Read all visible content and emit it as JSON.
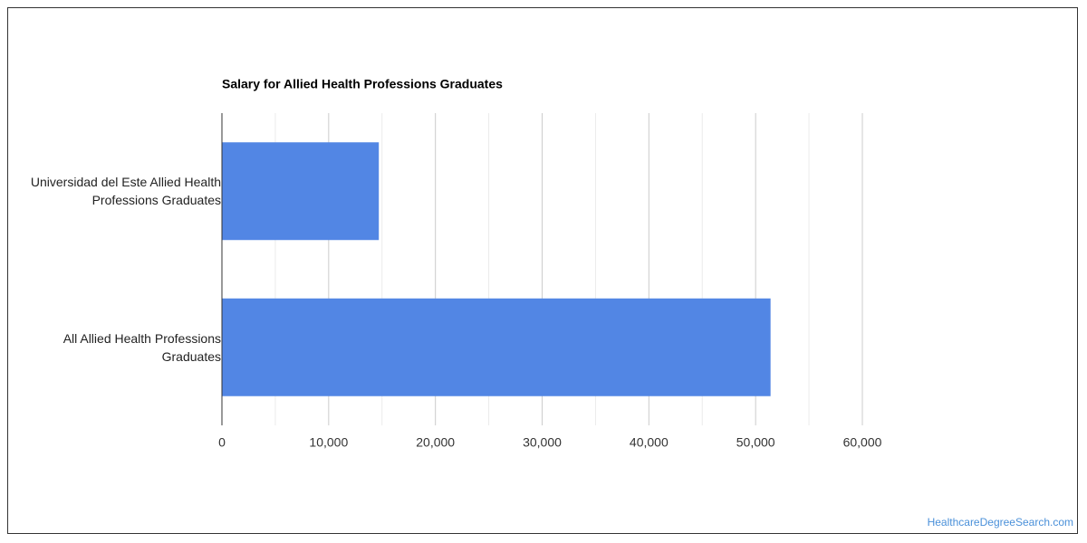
{
  "chart_data": {
    "type": "bar",
    "orientation": "horizontal",
    "title": "Salary for Allied Health Professions Graduates",
    "categories": [
      "Universidad del Este Allied Health Professions Graduates",
      "All Allied Health Professions Graduates"
    ],
    "values": [
      14700,
      51400
    ],
    "color": "#5286e4",
    "xlim": [
      0,
      60000
    ],
    "xticks": [
      0,
      {
        "value": 10000,
        "label": "10,000"
      },
      {
        "value": 20000,
        "label": "20,000"
      },
      {
        "value": 30000,
        "label": "30,000"
      },
      {
        "value": 40000,
        "label": "40,000"
      },
      {
        "value": 50000,
        "label": "50,000"
      },
      {
        "value": 60000,
        "label": "60,000"
      }
    ],
    "x_minor_ticks": [
      5000,
      15000,
      25000,
      35000,
      45000,
      55000
    ],
    "grid": true,
    "source": "HealthcareDegreeSearch.com"
  }
}
